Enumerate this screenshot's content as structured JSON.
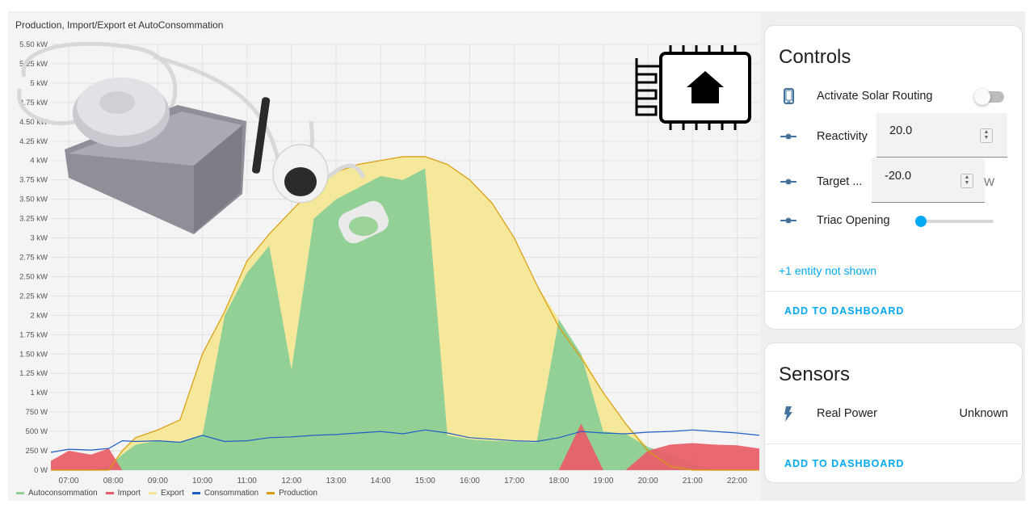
{
  "colors": {
    "autoconsommation": "#93d095",
    "import": "#e8606a",
    "export": "#f5e89a",
    "consommation": "#1f5fc9",
    "production": "#d99a0b",
    "accent": "#03a9f4",
    "icon": "#44739e"
  },
  "chart": {
    "title": "Production, Import/Export et AutoConsommation"
  },
  "chart_data": {
    "type": "area",
    "title": "Production, Import/Export et AutoConsommation",
    "xlabel": "",
    "ylabel": "",
    "x_ticks": [
      "07:00",
      "08:00",
      "09:00",
      "10:00",
      "11:00",
      "12:00",
      "13:00",
      "14:00",
      "15:00",
      "16:00",
      "17:00",
      "18:00",
      "19:00",
      "20:00",
      "21:00",
      "22:00"
    ],
    "y_ticks": [
      "0 W",
      "250 W",
      "500 W",
      "750 W",
      "1 kW",
      "1.25 kW",
      "1.50 kW",
      "1.75 kW",
      "2 kW",
      "2.25 kW",
      "2.50 kW",
      "2.75 kW",
      "3 kW",
      "3.25 kW",
      "3.50 kW",
      "3.75 kW",
      "4 kW",
      "4.25 kW",
      "4.50 kW",
      "4.75 kW",
      "5 kW",
      "5.25 kW",
      "5.50 kW"
    ],
    "ylim": [
      0,
      5500
    ],
    "x_hours": [
      6.6,
      7.0,
      7.5,
      7.9,
      8.2,
      8.5,
      9.0,
      9.5,
      10.0,
      10.5,
      11.0,
      11.5,
      12.0,
      12.5,
      13.0,
      13.5,
      14.0,
      14.5,
      15.0,
      15.5,
      16.0,
      16.5,
      17.0,
      17.5,
      18.0,
      18.5,
      19.0,
      19.5,
      20.0,
      20.5,
      21.0,
      21.5,
      22.0,
      22.5
    ],
    "series": [
      {
        "name": "Production",
        "values": [
          0,
          0,
          0,
          0,
          250,
          420,
          520,
          650,
          1500,
          2050,
          2700,
          3050,
          3350,
          3650,
          3850,
          3950,
          4000,
          4050,
          4050,
          3950,
          3750,
          3450,
          3000,
          2400,
          1850,
          1450,
          1000,
          600,
          250,
          50,
          0,
          0,
          0,
          0
        ]
      },
      {
        "name": "Autoconsommation",
        "values": [
          0,
          0,
          0,
          50,
          200,
          330,
          380,
          360,
          450,
          2000,
          2550,
          2900,
          1300,
          3250,
          3500,
          3650,
          3800,
          3750,
          3900,
          450,
          400,
          380,
          370,
          360,
          1950,
          1500,
          500,
          470,
          300,
          200,
          80,
          0,
          0,
          0
        ]
      },
      {
        "name": "Import",
        "values": [
          120,
          250,
          200,
          280,
          0,
          0,
          0,
          0,
          0,
          0,
          0,
          0,
          0,
          0,
          0,
          0,
          0,
          0,
          0,
          0,
          0,
          0,
          0,
          0,
          0,
          600,
          0,
          0,
          250,
          330,
          350,
          330,
          320,
          280
        ]
      },
      {
        "name": "Export",
        "values": [
          0,
          0,
          0,
          0,
          50,
          90,
          140,
          290,
          1050,
          50,
          150,
          150,
          2050,
          400,
          350,
          300,
          200,
          300,
          150,
          3500,
          3350,
          3070,
          2630,
          2040,
          0,
          0,
          500,
          130,
          0,
          0,
          0,
          0,
          0,
          0
        ]
      },
      {
        "name": "Consommation",
        "values": [
          230,
          270,
          260,
          280,
          380,
          370,
          380,
          360,
          450,
          370,
          380,
          420,
          430,
          450,
          460,
          480,
          500,
          470,
          520,
          480,
          420,
          400,
          380,
          370,
          420,
          500,
          480,
          470,
          490,
          500,
          520,
          500,
          480,
          450
        ]
      }
    ],
    "legend_position": "bottom-left",
    "grid": true
  },
  "legend": [
    {
      "label": "Autoconsommation",
      "color": "#93d095"
    },
    {
      "label": "Import",
      "color": "#e8606a"
    },
    {
      "label": "Export",
      "color": "#f5e89a"
    },
    {
      "label": "Consommation",
      "color": "#1f5fc9"
    },
    {
      "label": "Production",
      "color": "#d99a0b"
    }
  ],
  "controls": {
    "title": "Controls",
    "rows": [
      {
        "label": "Activate Solar Routing",
        "icon": "phone-icon",
        "state": "off"
      },
      {
        "label": "Reactivity",
        "icon": "slider-icon",
        "value": "20.0"
      },
      {
        "label": "Target ...",
        "icon": "slider-icon",
        "value": "-20.0",
        "unit": "W"
      },
      {
        "label": "Triac Opening",
        "icon": "slider-icon",
        "level": 0
      }
    ],
    "more_link": "+1 entity not shown",
    "add_button": "ADD TO DASHBOARD"
  },
  "sensors": {
    "title": "Sensors",
    "rows": [
      {
        "label": "Real Power",
        "icon": "flash-icon",
        "value": "Unknown"
      }
    ],
    "add_button": "ADD TO DASHBOARD"
  }
}
